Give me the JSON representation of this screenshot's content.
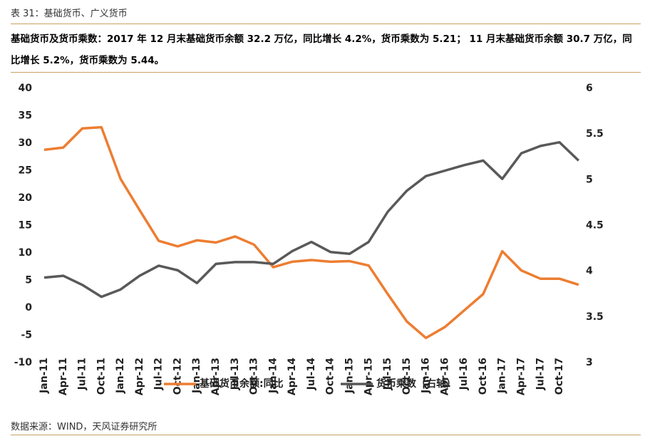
{
  "header": {
    "title": "表 31：基础货币、广义货币",
    "description": "基础货币及货币乘数：2017 年 12 月末基础货币余额 32.2 万亿，同比增长 4.2%，货币乘数为 5.21；  11 月末基础货币余额 30.7 万亿，同比增长 5.2%，货币乘数为 5.44。"
  },
  "chart_data": {
    "type": "line",
    "categories": [
      "Jan-11",
      "Apr-11",
      "Jul-11",
      "Oct-11",
      "Jan-12",
      "Apr-12",
      "Jul-12",
      "Oct-12",
      "Jan-13",
      "Apr-13",
      "Jul-13",
      "Oct-13",
      "Jan-14",
      "Apr-14",
      "Jul-14",
      "Oct-14",
      "Jan-15",
      "Apr-15",
      "Jul-15",
      "Oct-15",
      "Jan-16",
      "Apr-16",
      "Jul-16",
      "Oct-16",
      "Jan-17",
      "Apr-17",
      "Jul-17",
      "Oct-17",
      null
    ],
    "series": [
      {
        "name": "基础货币余额:同比",
        "color": "#ed7d31",
        "values": [
          28.8,
          29.2,
          32.7,
          32.9,
          23.5,
          17.8,
          12.2,
          11.2,
          12.3,
          11.9,
          13.0,
          11.5,
          7.4,
          8.4,
          8.7,
          8.4,
          8.5,
          7.7,
          2.5,
          -2.5,
          -5.5,
          -3.5,
          -0.5,
          2.5,
          10.3,
          6.8,
          5.3,
          5.3,
          4.2
        ]
      },
      {
        "name": "货币乘数（右轴）",
        "color": "#595959",
        "axis": "y2",
        "values": [
          3.93,
          3.95,
          3.85,
          3.72,
          3.8,
          3.95,
          4.06,
          4.01,
          3.87,
          4.08,
          4.1,
          4.1,
          4.08,
          4.22,
          4.32,
          4.21,
          4.19,
          4.32,
          4.65,
          4.88,
          5.04,
          5.1,
          5.16,
          5.21,
          5.01,
          5.29,
          5.37,
          5.41,
          5.21
        ]
      }
    ],
    "ylim": [
      -10,
      40
    ],
    "yticks": [
      -10,
      -5,
      0,
      5,
      10,
      15,
      20,
      25,
      30,
      35,
      40
    ],
    "y2lim": [
      3,
      6
    ],
    "y2ticks": [
      3,
      3.5,
      4,
      4.5,
      5,
      5.5,
      6
    ],
    "legend": "bottom"
  },
  "footer": {
    "source": "数据来源：WIND，天风证券研究所"
  }
}
